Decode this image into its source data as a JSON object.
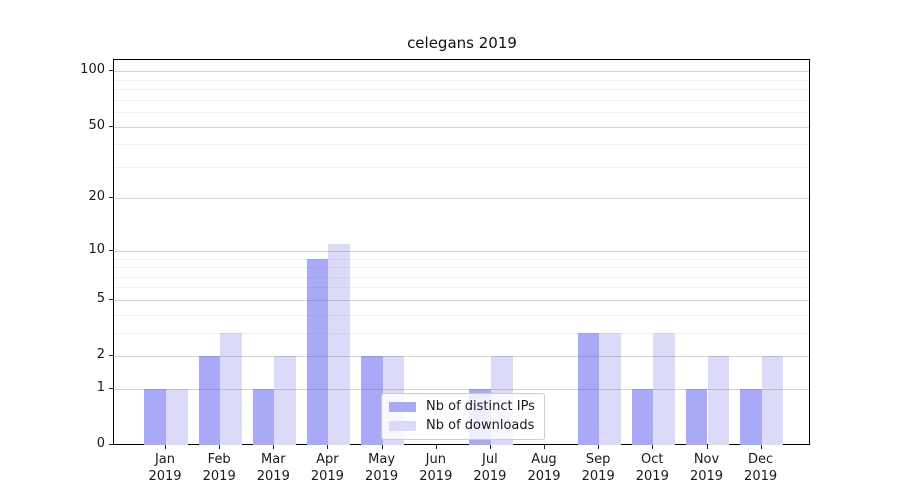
{
  "title": "celegans 2019",
  "chart_data": {
    "type": "bar",
    "title": "celegans 2019",
    "categories": [
      "Jan 2019",
      "Feb 2019",
      "Mar 2019",
      "Apr 2019",
      "May 2019",
      "Jun 2019",
      "Jul 2019",
      "Aug 2019",
      "Sep 2019",
      "Oct 2019",
      "Nov 2019",
      "Dec 2019"
    ],
    "series": [
      {
        "name": "Nb of distinct IPs",
        "color": "#a9a9f8",
        "values": [
          1,
          2,
          1,
          9,
          2,
          0,
          1,
          0,
          3,
          1,
          1,
          1
        ]
      },
      {
        "name": "Nb of downloads",
        "color": "#dbdbf9",
        "values": [
          1,
          3,
          2,
          11,
          2,
          0,
          2,
          0,
          3,
          3,
          2,
          2
        ]
      }
    ],
    "xlabel": "",
    "ylabel": "",
    "yscale": "log1p",
    "ylim": [
      0,
      115
    ],
    "y_major_ticks": [
      0,
      1,
      2,
      5,
      10,
      20,
      50,
      100
    ],
    "y_minor_gridlines": [
      3,
      4,
      6,
      7,
      8,
      9,
      30,
      40,
      60,
      70,
      80,
      90
    ],
    "grid": true,
    "legend_position": "lower center"
  },
  "legend": {
    "items": [
      {
        "label": "Nb of distinct IPs",
        "color": "#a9a9f8"
      },
      {
        "label": "Nb of downloads",
        "color": "#dbdbf9"
      }
    ]
  }
}
